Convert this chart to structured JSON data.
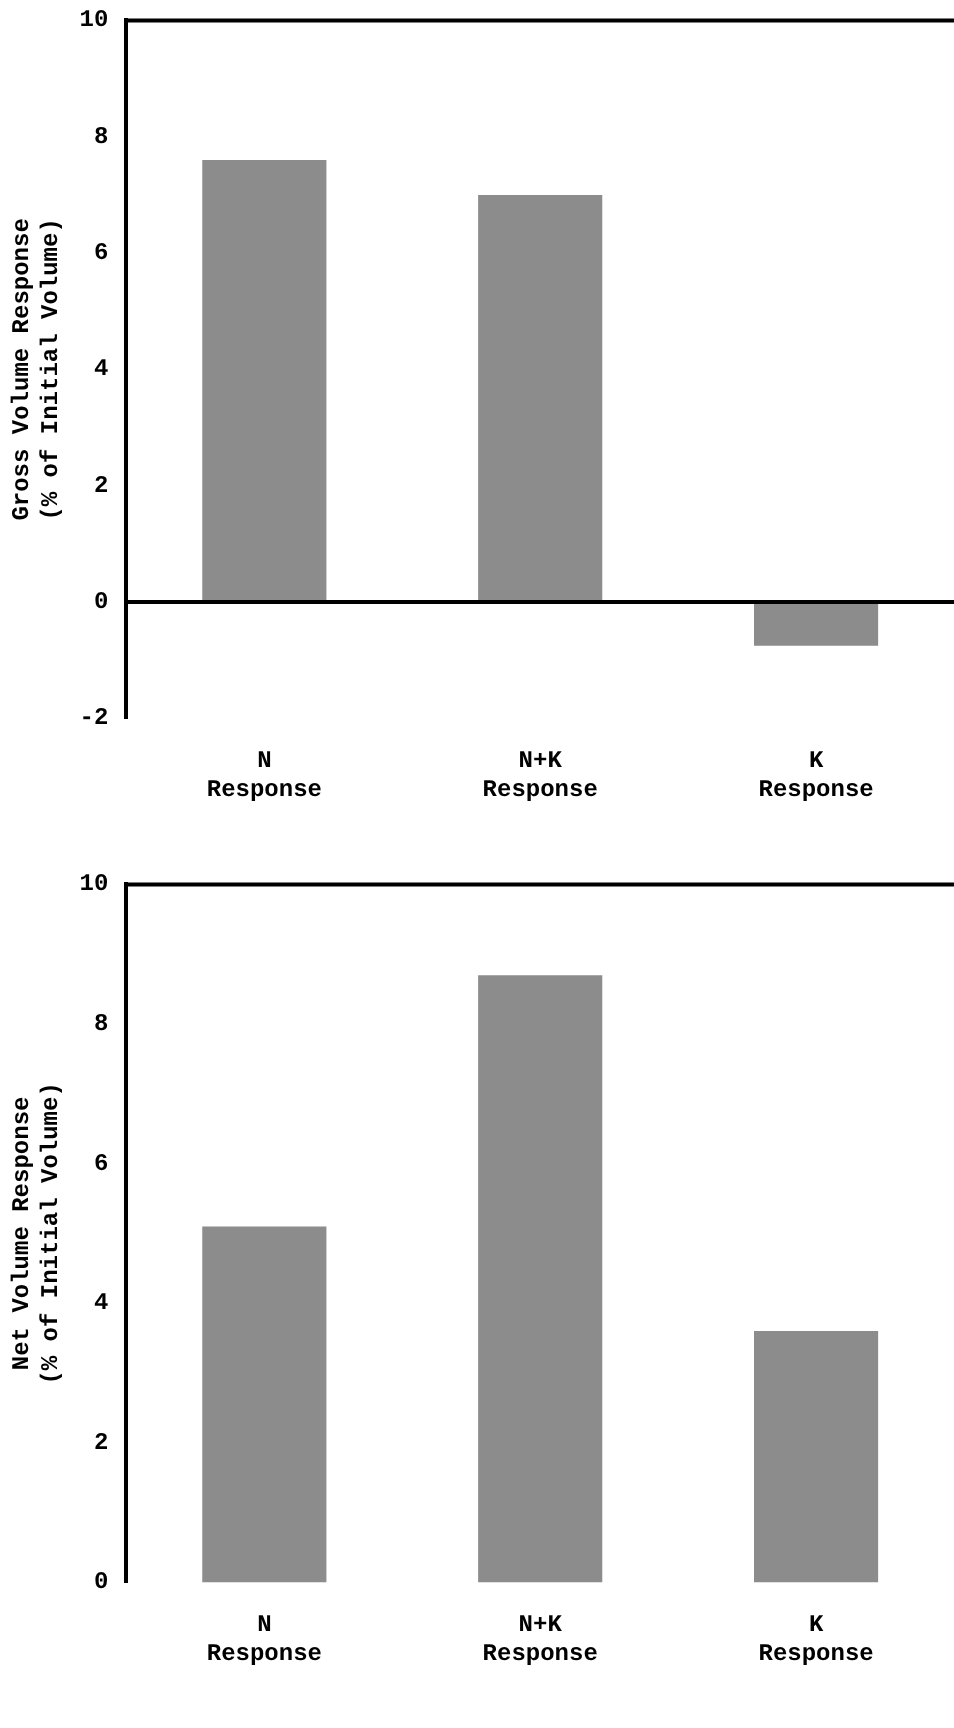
{
  "chart_data": [
    {
      "type": "bar",
      "ylabel": "Gross Volume Response\n(% of Initial Volume)",
      "categories": [
        "N\nResponse",
        "N+K\nResponse",
        "K\nResponse"
      ],
      "values": [
        7.6,
        7.0,
        -0.75
      ],
      "color": "#8c8c8c",
      "ylim": [
        -2,
        10
      ],
      "yticks": [
        -2,
        0,
        2,
        4,
        6,
        8,
        10
      ],
      "grid": false,
      "ref_lines": [
        {
          "axis": "y",
          "value": 0,
          "color": "#000000"
        }
      ]
    },
    {
      "type": "bar",
      "ylabel": "Net Volume Response\n(% of Initial Volume)",
      "categories": [
        "N\nResponse",
        "N+K\nResponse",
        "K\nResponse"
      ],
      "values": [
        5.1,
        8.7,
        3.6
      ],
      "color": "#8c8c8c",
      "ylim": [
        0,
        10
      ],
      "yticks": [
        0,
        2,
        4,
        6,
        8,
        10
      ],
      "grid": false
    }
  ]
}
